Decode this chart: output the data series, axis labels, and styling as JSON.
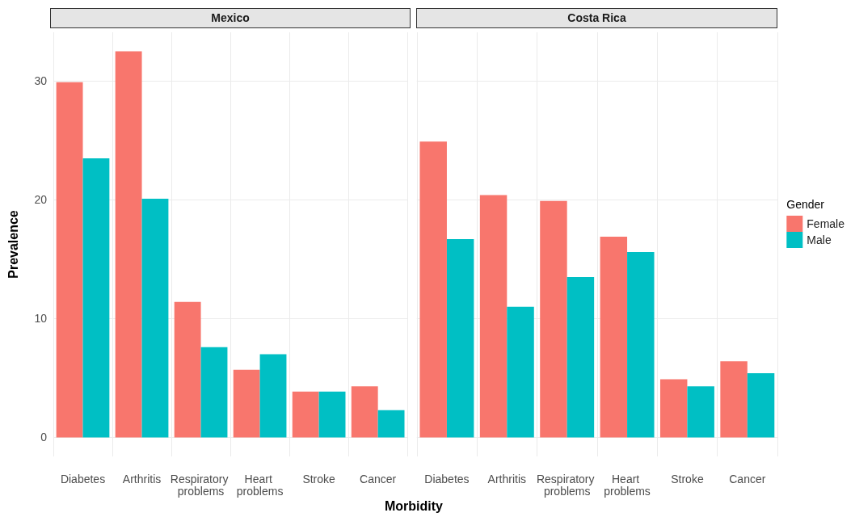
{
  "chart_data": [
    {
      "type": "bar",
      "title": "Mexico",
      "xlabel": "Morbidity",
      "ylabel": "Prevalence",
      "categories": [
        "Diabetes",
        "Arthritis",
        "Respiratory problems",
        "Heart problems",
        "Stroke",
        "Cancer"
      ],
      "series": [
        {
          "color": "#f8766d",
          "values": [
            29.9,
            32.5,
            11.4,
            5.7,
            3.85,
            4.3
          ]
        },
        {
          "color": "#00bfc4",
          "values": [
            23.5,
            20.1,
            7.6,
            7.0,
            3.85,
            2.3
          ]
        }
      ],
      "ylim": [
        -1.6,
        34.1
      ],
      "yticks": [
        0,
        10,
        20,
        30
      ],
      "grid": true
    },
    {
      "type": "bar",
      "title": "Costa Rica",
      "legend_title": "Gender",
      "legend": "right",
      "tick_labels": "x",
      "categories": [
        "Diabetes",
        "Arthritis",
        "Respiratory problems",
        "Heart problems",
        "Stroke",
        "Cancer"
      ],
      "series": [
        {
          "name": "Female",
          "color": "#f8766d",
          "values": [
            24.9,
            20.4,
            19.9,
            16.9,
            4.9,
            6.4
          ]
        },
        {
          "name": "Male",
          "color": "#00bfc4",
          "values": [
            16.7,
            11.0,
            13.5,
            15.6,
            4.3,
            5.4
          ]
        }
      ],
      "ylim": [
        -1.6,
        34.1
      ],
      "yticks": [
        0,
        10,
        20,
        30
      ],
      "grid": true
    }
  ]
}
